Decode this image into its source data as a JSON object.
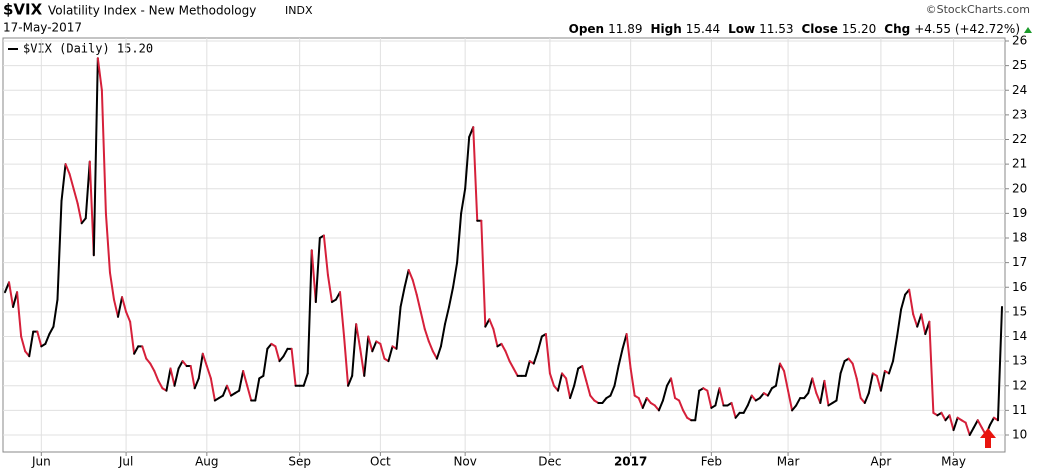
{
  "chart_data": {
    "type": "line",
    "header": {
      "symbol": "$VIX",
      "name": "Volatility Index - New Methodology",
      "exchange": "INDX",
      "date": "17-May-2017",
      "credit": "©StockCharts.com",
      "quote": [
        {
          "label": "Open",
          "value": "11.89"
        },
        {
          "label": "High",
          "value": "15.44"
        },
        {
          "label": "Low",
          "value": "11.53"
        },
        {
          "label": "Close",
          "value": "15.20"
        },
        {
          "label": "Chg",
          "value": "+4.55 (+42.72%)"
        }
      ]
    },
    "series": [
      {
        "name": "$VIX (Daily) 15.20",
        "color": "#000000",
        "down_color": "#d6203a",
        "values": [
          15.8,
          16.2,
          15.2,
          15.8,
          14.0,
          13.4,
          13.2,
          14.2,
          14.2,
          13.6,
          13.7,
          14.1,
          14.4,
          15.5,
          19.5,
          21.0,
          20.6,
          20.0,
          19.4,
          18.6,
          18.8,
          21.1,
          17.3,
          25.3,
          24.0,
          19.0,
          16.6,
          15.5,
          14.8,
          15.6,
          15.0,
          14.6,
          13.3,
          13.6,
          13.6,
          13.1,
          12.9,
          12.6,
          12.2,
          11.9,
          11.8,
          12.7,
          12.0,
          12.7,
          13.0,
          12.8,
          12.8,
          11.9,
          12.3,
          13.3,
          12.8,
          12.3,
          11.4,
          11.5,
          11.6,
          12.0,
          11.6,
          11.7,
          11.8,
          12.6,
          12.0,
          11.4,
          11.4,
          12.3,
          12.4,
          13.5,
          13.7,
          13.6,
          13.0,
          13.2,
          13.5,
          13.5,
          12.0,
          12.0,
          12.0,
          12.5,
          17.5,
          15.4,
          18.0,
          18.1,
          16.5,
          15.4,
          15.5,
          15.8,
          14.0,
          12.0,
          12.4,
          14.5,
          13.5,
          12.4,
          14.0,
          13.4,
          13.8,
          13.7,
          13.1,
          13.0,
          13.6,
          13.5,
          15.2,
          16.0,
          16.7,
          16.3,
          15.7,
          15.0,
          14.3,
          13.8,
          13.4,
          13.1,
          13.6,
          14.5,
          15.2,
          16.0,
          17.0,
          19.0,
          20.0,
          22.1,
          22.5,
          18.7,
          18.7,
          14.4,
          14.7,
          14.3,
          13.6,
          13.7,
          13.4,
          13.0,
          12.7,
          12.4,
          12.4,
          12.4,
          13.0,
          12.9,
          13.4,
          14.0,
          14.1,
          12.5,
          12.0,
          11.8,
          12.5,
          12.3,
          11.5,
          12.0,
          12.7,
          12.8,
          12.2,
          11.6,
          11.4,
          11.3,
          11.3,
          11.5,
          11.6,
          12.0,
          12.8,
          13.5,
          14.1,
          12.7,
          11.6,
          11.5,
          11.1,
          11.5,
          11.3,
          11.2,
          11.0,
          11.4,
          12.0,
          12.3,
          11.5,
          11.4,
          11.0,
          10.7,
          10.6,
          10.6,
          11.8,
          11.9,
          11.8,
          11.1,
          11.2,
          11.9,
          11.2,
          11.2,
          11.3,
          10.7,
          10.9,
          10.9,
          11.2,
          11.6,
          11.4,
          11.5,
          11.7,
          11.6,
          11.9,
          12.0,
          12.9,
          12.6,
          11.8,
          11.0,
          11.2,
          11.5,
          11.5,
          11.7,
          12.3,
          11.7,
          11.3,
          12.2,
          11.2,
          11.3,
          11.4,
          12.5,
          13.0,
          13.1,
          12.9,
          12.3,
          11.5,
          11.3,
          11.7,
          12.5,
          12.4,
          11.8,
          12.6,
          12.5,
          13.0,
          14.0,
          15.1,
          15.7,
          15.9,
          14.9,
          14.4,
          14.9,
          14.1,
          14.6,
          10.9,
          10.8,
          10.9,
          10.6,
          10.8,
          10.2,
          10.7,
          10.6,
          10.5,
          10.0,
          10.3,
          10.6,
          10.3,
          10.0,
          10.4,
          10.7,
          10.6,
          15.2
        ]
      }
    ],
    "xlim": [
      0,
      247
    ],
    "xticks": [
      {
        "value": 9,
        "label": "Jun"
      },
      {
        "value": 30,
        "label": "Jul"
      },
      {
        "value": 50,
        "label": "Aug"
      },
      {
        "value": 73,
        "label": "Sep"
      },
      {
        "value": 93,
        "label": "Oct"
      },
      {
        "value": 114,
        "label": "Nov"
      },
      {
        "value": 135,
        "label": "Dec"
      },
      {
        "value": 155,
        "label": "2017"
      },
      {
        "value": 175,
        "label": "Feb"
      },
      {
        "value": 194,
        "label": "Mar"
      },
      {
        "value": 217,
        "label": "Apr"
      },
      {
        "value": 235,
        "label": "May"
      }
    ],
    "ylim": [
      10,
      26
    ],
    "yticks": [
      10,
      11,
      12,
      13,
      14,
      15,
      16,
      17,
      18,
      19,
      20,
      21,
      22,
      23,
      24,
      25,
      26
    ],
    "grid": true
  }
}
